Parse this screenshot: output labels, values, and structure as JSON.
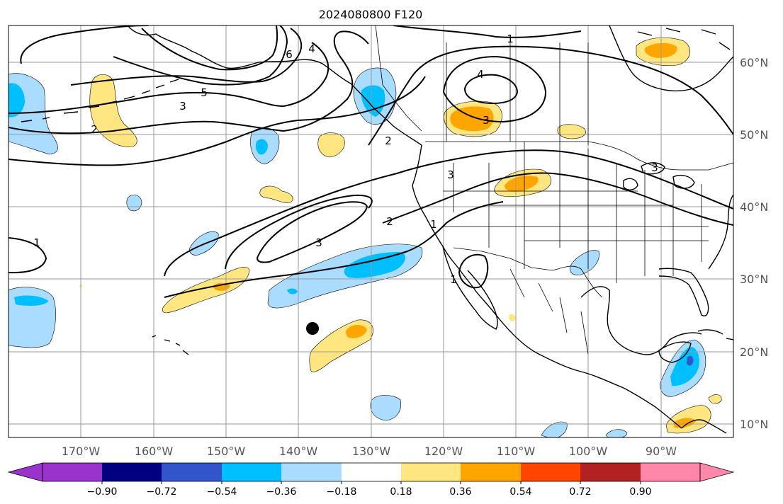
{
  "title": "2024080800 F120",
  "map": {
    "longitude_labels": [
      "170°W",
      "160°W",
      "150°W",
      "140°W",
      "130°W",
      "120°W",
      "110°W",
      "100°W",
      "90°W"
    ],
    "latitude_labels": [
      "60°N",
      "50°N",
      "40°N",
      "30°N",
      "20°N",
      "10°N"
    ],
    "contour_labels": [
      "1",
      "2",
      "3",
      "4",
      "5",
      "6",
      "1",
      "3",
      "4",
      "3",
      "3",
      "2",
      "3",
      "1",
      "1",
      "2"
    ],
    "storm_marker": "filled-black-circle"
  },
  "colorbar": {
    "tick_labels": [
      "−0.90",
      "−0.72",
      "−0.54",
      "−0.36",
      "−0.18",
      "0.18",
      "0.36",
      "0.54",
      "0.72",
      "0.90"
    ],
    "colors": [
      "#9933cc",
      "#000080",
      "#3355cc",
      "#00bfff",
      "#aadcff",
      "#ffffff",
      "#ffe680",
      "#ffa500",
      "#ff4500",
      "#b22222",
      "#ff88aa"
    ],
    "extend": "both"
  }
}
